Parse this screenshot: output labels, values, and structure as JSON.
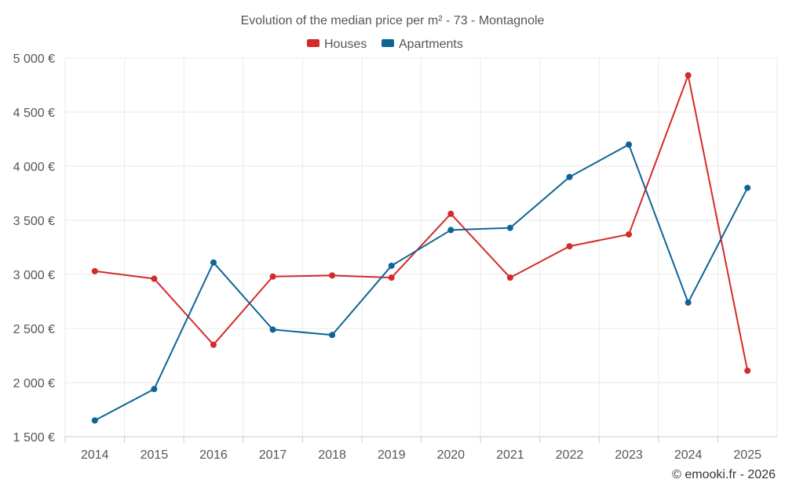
{
  "chart_data": {
    "type": "line",
    "title": "Evolution of the median price per m² - 73 - Montagnole",
    "categories": [
      "2014",
      "2015",
      "2016",
      "2017",
      "2018",
      "2019",
      "2020",
      "2021",
      "2022",
      "2023",
      "2024",
      "2025"
    ],
    "series": [
      {
        "name": "Houses",
        "color": "#d42a2a",
        "values": [
          3030,
          2960,
          2350,
          2980,
          2990,
          2970,
          3560,
          2970,
          3260,
          3370,
          4840,
          2110
        ]
      },
      {
        "name": "Apartments",
        "color": "#0f6496",
        "values": [
          1650,
          1940,
          3110,
          2490,
          2440,
          3080,
          3410,
          3430,
          3900,
          4200,
          2740,
          3800
        ]
      }
    ],
    "ylim": [
      1500,
      5000
    ],
    "yticks": [
      1500,
      2000,
      2500,
      3000,
      3500,
      4000,
      4500,
      5000
    ],
    "ytick_labels": [
      "1 500 €",
      "2 000 €",
      "2 500 €",
      "3 000 €",
      "3 500 €",
      "4 000 €",
      "4 500 €",
      "5 000 €"
    ],
    "legend_position": "top-center",
    "grid": true,
    "xlabel": "",
    "ylabel": ""
  },
  "credit": "© emooki.fr - 2026"
}
